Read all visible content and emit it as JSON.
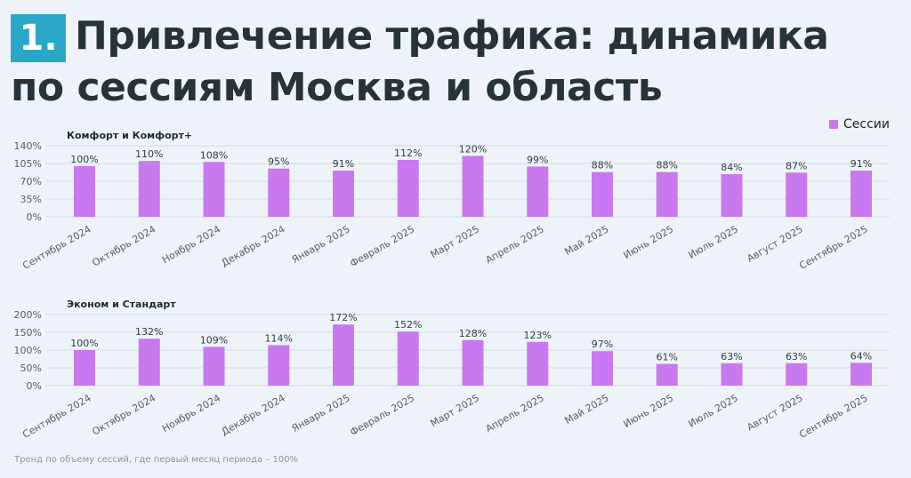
{
  "header": {
    "badge": "1.",
    "title_line1": "Привлечение трафика: динамика",
    "title_line2": "по сессиям Москва и область"
  },
  "legend": {
    "label": "Сессии",
    "color": "#c879f0"
  },
  "footnote": "Тренд по объему сессий, где первый месяц периода – 100%",
  "colors": {
    "bar": "#c879f0",
    "grid": "#d4dbe2",
    "axis_text": "#555f66"
  },
  "chart_data": [
    {
      "type": "bar",
      "title": "Комфорт и Комфорт+",
      "categories": [
        "Сентябрь 2024",
        "Октябрь 2024",
        "Ноябрь 2024",
        "Декабрь 2024",
        "Январь 2025",
        "Февраль 2025",
        "Март 2025",
        "Апрель 2025",
        "Май 2025",
        "Июнь 2025",
        "Июль 2025",
        "Август 2025",
        "Сентябрь 2025"
      ],
      "series": [
        {
          "name": "Сессии",
          "values": [
            100,
            110,
            108,
            95,
            91,
            112,
            120,
            99,
            88,
            88,
            84,
            87,
            91
          ]
        }
      ],
      "yticks": [
        "0%",
        "35%",
        "70%",
        "105%",
        "140%"
      ],
      "ylim": [
        0,
        140
      ],
      "unit": "%"
    },
    {
      "type": "bar",
      "title": "Эконом и Стандарт",
      "categories": [
        "Сентябрь 2024",
        "Октябрь 2024",
        "Ноябрь 2024",
        "Декабрь 2024",
        "Январь 2025",
        "Февраль 2025",
        "Март 2025",
        "Апрель 2025",
        "Май 2025",
        "Июнь 2025",
        "Июль 2025",
        "Август 2025",
        "Сентябрь 2025"
      ],
      "series": [
        {
          "name": "Сессии",
          "values": [
            100,
            132,
            109,
            114,
            172,
            152,
            128,
            123,
            97,
            61,
            63,
            63,
            64
          ]
        }
      ],
      "yticks": [
        "0%",
        "50%",
        "100%",
        "150%",
        "200%"
      ],
      "ylim": [
        0,
        200
      ],
      "unit": "%"
    }
  ]
}
